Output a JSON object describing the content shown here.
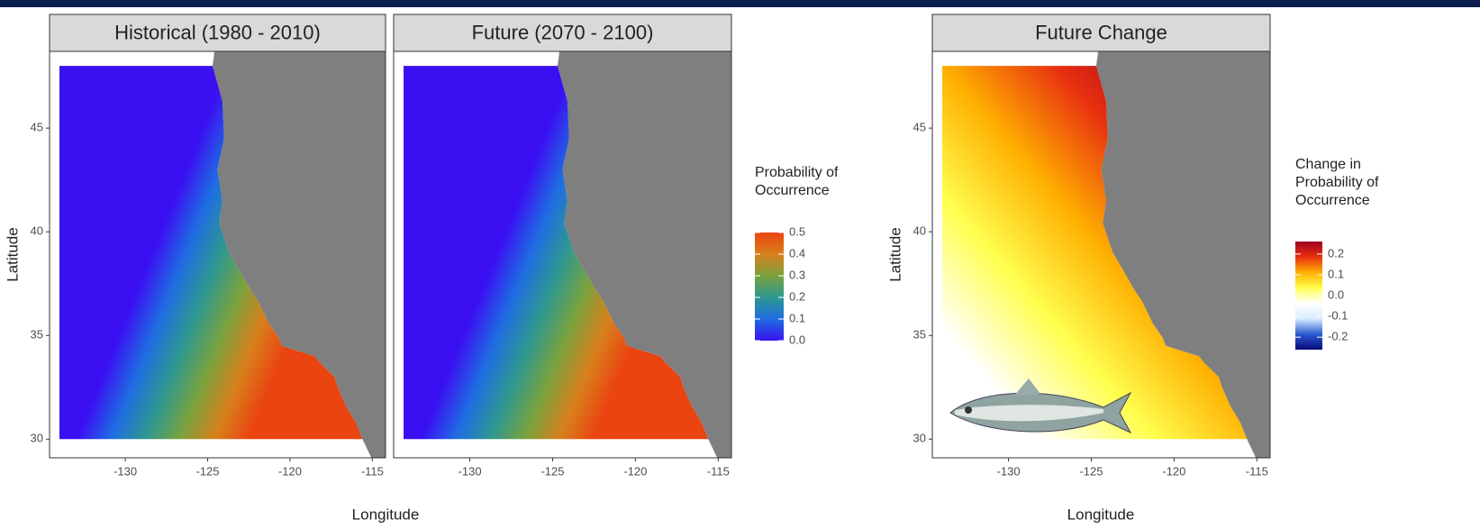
{
  "chart_data": [
    {
      "type": "raster-map",
      "panels": [
        "Historical (1980 - 2010)",
        "Future (2070 - 2100)"
      ],
      "x_label": "Longitude",
      "y_label": "Latitude",
      "xlim": [
        -134.6,
        -114.2
      ],
      "ylim": [
        29.1,
        48.7
      ],
      "xticks": [
        -130,
        -125,
        -120,
        -115
      ],
      "yticks": [
        30,
        35,
        40,
        45
      ],
      "colorbar": {
        "title": [
          "Probability of",
          "Occurrence"
        ],
        "lim": [
          0,
          0.5
        ],
        "ticks": [
          {
            "value": 0,
            "label": "0.0"
          },
          0.1,
          0.2,
          0.3,
          0.4,
          0.5
        ],
        "colors": [
          "#3a10f2",
          "#1f6de2",
          "#2e9890",
          "#7aa23e",
          "#d8801c",
          "#ea4410"
        ]
      }
    },
    {
      "type": "raster-map",
      "panels": [
        "Future Change"
      ],
      "x_label": "Longitude",
      "y_label": "Latitude",
      "xlim": [
        -134.6,
        -114.2
      ],
      "ylim": [
        29.1,
        48.7
      ],
      "xticks": [
        -130,
        -125,
        -120,
        -115
      ],
      "yticks": [
        30,
        35,
        40,
        45
      ],
      "colorbar": {
        "title": [
          "Change in",
          "Probability of",
          "Occurrence"
        ],
        "lim": [
          -0.26,
          0.26
        ],
        "ticks": [
          -0.2,
          -0.1,
          {
            "value": 0,
            "label": "0.0"
          },
          0.1,
          0.2
        ],
        "colors": [
          "#08087a",
          "#2a5ad0",
          "#d8ecff",
          "#ffffff",
          "#ffff50",
          "#ffb000",
          "#e83010",
          "#a00020"
        ]
      }
    }
  ]
}
